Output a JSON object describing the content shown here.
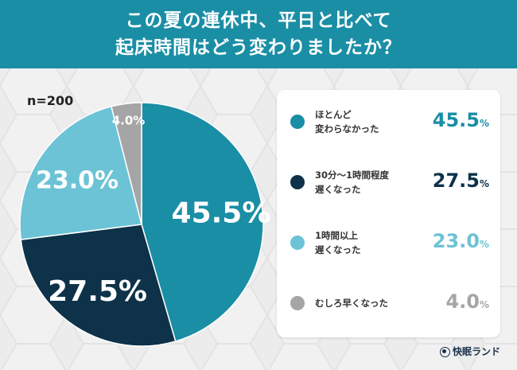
{
  "header": {
    "line1": "この夏の連休中、平日と比べて",
    "line2": "起床時間はどう変わりましたか？"
  },
  "sample_size": "n=200",
  "colors": {
    "header_bg": "#1a8ea5",
    "teal": "#1a8ea5",
    "navy": "#0d3249",
    "light_blue": "#6cc3d5",
    "gray": "#a5a5a5"
  },
  "chart_data": {
    "type": "pie",
    "title": "この夏の連休中、平日と比べて起床時間はどう変わりましたか？",
    "categories": [
      "ほとんど変わらなかった",
      "30分〜1時間程度遅くなった",
      "1時間以上遅くなった",
      "むしろ早くなった"
    ],
    "values": [
      45.5,
      27.5,
      23.0,
      4.0
    ],
    "value_labels": [
      "45.5%",
      "27.5%",
      "23.0%",
      "4.0%"
    ],
    "colors": [
      "#1a8ea5",
      "#0d3249",
      "#6cc3d5",
      "#a5a5a5"
    ],
    "legend": "right"
  },
  "legend": {
    "items": [
      {
        "label": "ほとんど\n変わらなかった",
        "value": "45.5",
        "unit": "%",
        "color": "#1a8ea5"
      },
      {
        "label": "30分〜1時間程度\n遅くなった",
        "value": "27.5",
        "unit": "%",
        "color": "#0d3249"
      },
      {
        "label": "1時間以上\n遅くなった",
        "value": "23.0",
        "unit": "%",
        "color": "#6cc3d5"
      },
      {
        "label": "むしろ早くなった",
        "value": "4.0",
        "unit": "%",
        "color": "#a5a5a5"
      }
    ]
  },
  "brand": {
    "name": "快眠ランド",
    "icon": "brand-logo-icon"
  }
}
